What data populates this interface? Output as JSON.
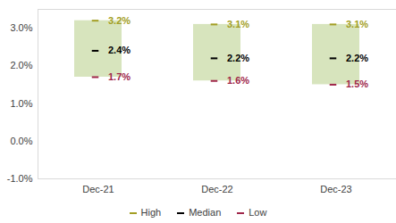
{
  "chart_data": {
    "type": "range",
    "categories": [
      "Dec-21",
      "Dec-22",
      "Dec-23"
    ],
    "color": "#d7e4bd",
    "series": [
      {
        "name": "High",
        "color": "#a39e24",
        "values": [
          3.2,
          3.1,
          3.1
        ],
        "value_labels": [
          "3.2%",
          "3.1%",
          "3.1%"
        ]
      },
      {
        "name": "Median",
        "color": "#000000",
        "values": [
          2.4,
          2.2,
          2.2
        ],
        "value_labels": [
          "2.4%",
          "2.2%",
          "2.2%"
        ]
      },
      {
        "name": "Low",
        "color": "#a0264a",
        "values": [
          1.7,
          1.6,
          1.5
        ],
        "value_labels": [
          "1.7%",
          "1.6%",
          "1.5%"
        ]
      }
    ],
    "ylim": [
      -1,
      3.5
    ],
    "yticks": [
      {
        "value": -1,
        "label": "-1.0%"
      },
      {
        "value": 0,
        "label": "0.0%"
      },
      {
        "value": 1,
        "label": "1.0%"
      },
      {
        "value": 2,
        "label": "2.0%"
      },
      {
        "value": 3,
        "label": "3.0%"
      }
    ],
    "data_labels": true,
    "grid": false,
    "legend": "bottom"
  }
}
